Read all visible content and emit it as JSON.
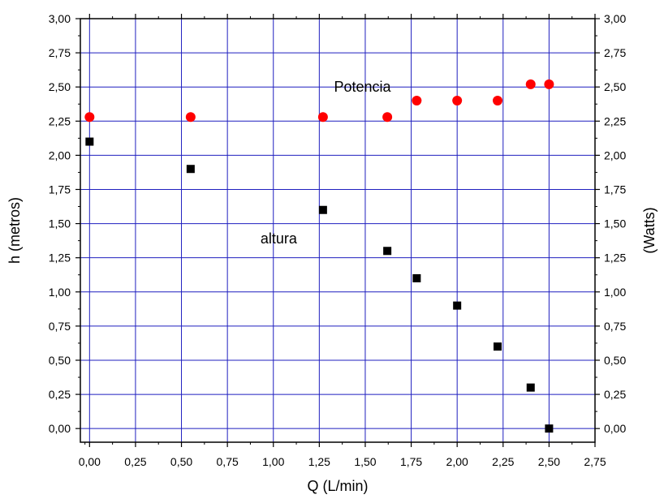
{
  "chart_data": {
    "type": "scatter",
    "xlabel": "Q (L/min)",
    "ylabel": "h (metros)",
    "y2label": "(Watts)",
    "xlim": [
      -0.05,
      2.75
    ],
    "ylim": [
      -0.1,
      3.0
    ],
    "y2lim": [
      -0.1,
      3.0
    ],
    "x_ticks": [
      0.0,
      0.25,
      0.5,
      0.75,
      1.0,
      1.25,
      1.5,
      1.75,
      2.0,
      2.25,
      2.5,
      2.75
    ],
    "x_tick_labels": [
      "0,00",
      "0,25",
      "0,50",
      "0,75",
      "1,00",
      "1,25",
      "1,50",
      "1,75",
      "2,00",
      "2,25",
      "2,50",
      "2,75"
    ],
    "y_ticks": [
      0.0,
      0.25,
      0.5,
      0.75,
      1.0,
      1.25,
      1.5,
      1.75,
      2.0,
      2.25,
      2.5,
      2.75,
      3.0
    ],
    "y_tick_labels": [
      "0,00",
      "0,25",
      "0,50",
      "0,75",
      "1,00",
      "1,25",
      "1,50",
      "1,75",
      "2,00",
      "2,25",
      "2,50",
      "2,75",
      "3,00"
    ],
    "y2_tick_labels": [
      "0,00",
      "0,25",
      "0,50",
      "0,75",
      "1,00",
      "1,25",
      "1,50",
      "1,75",
      "2,00",
      "2,25",
      "2,50",
      "2,75",
      "3,00"
    ],
    "grid": true,
    "grid_color": "#1f1fbf",
    "series": [
      {
        "marker": "square",
        "color": "#000000",
        "axis": "left",
        "x": [
          0.0,
          0.55,
          1.27,
          1.62,
          1.78,
          2.0,
          2.22,
          2.4,
          2.5
        ],
        "y": [
          2.1,
          1.9,
          1.6,
          1.3,
          1.1,
          0.9,
          0.6,
          0.3,
          0.0
        ]
      },
      {
        "marker": "circle",
        "color": "#ff0000",
        "axis": "right",
        "x": [
          0.0,
          0.55,
          1.27,
          1.62,
          1.78,
          2.0,
          2.22,
          2.4,
          2.5
        ],
        "y": [
          2.28,
          2.28,
          2.28,
          2.28,
          2.4,
          2.4,
          2.4,
          2.52,
          2.52
        ]
      }
    ],
    "annotations": [
      {
        "text": "Potencia",
        "x": 1.33,
        "y": 2.5
      },
      {
        "text": "altura",
        "x": 0.93,
        "y": 1.39
      }
    ]
  }
}
